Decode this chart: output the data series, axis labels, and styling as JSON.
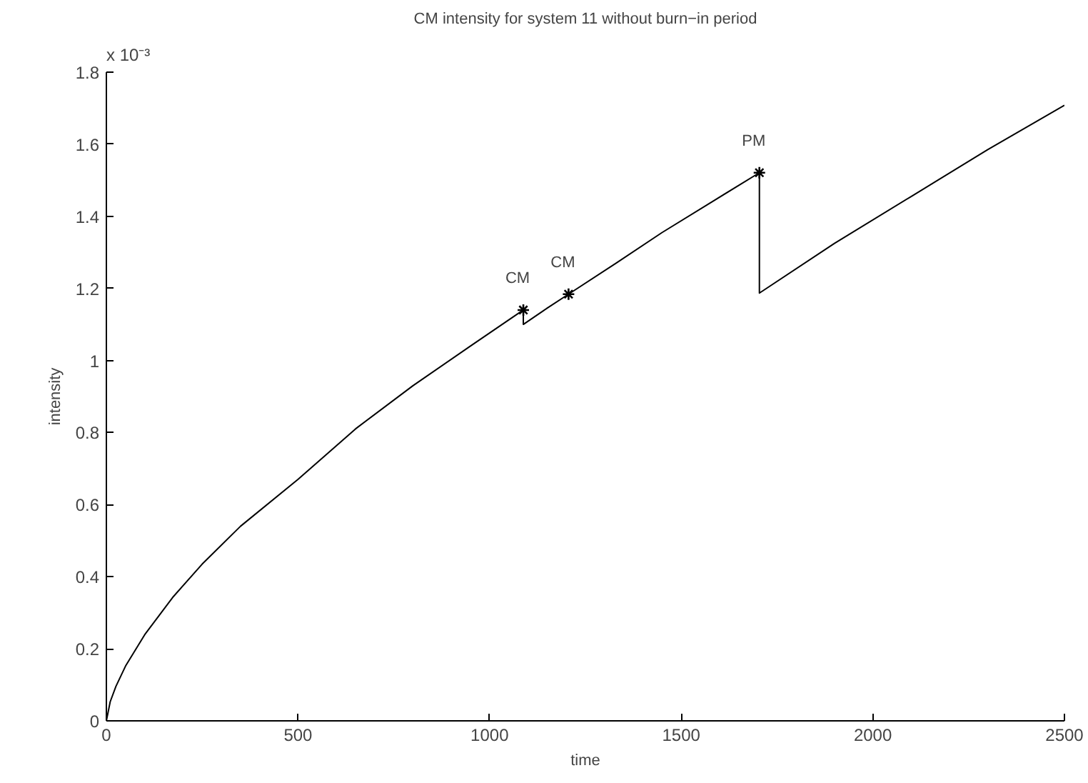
{
  "chart_data": {
    "type": "line",
    "title": "CM intensity for system 11 without burn−in period",
    "xlabel": "time",
    "ylabel": "intensity",
    "series": [
      {
        "color": "#000000",
        "x": [
          0,
          10,
          25,
          50,
          100,
          175,
          250,
          350,
          500,
          650,
          800,
          950,
          1088,
          1088,
          1150,
          1206,
          1330,
          1450,
          1580,
          1704,
          1704,
          1900,
          2100,
          2300,
          2500
        ],
        "values": [
          0,
          0.053,
          0.096,
          0.152,
          0.239,
          0.345,
          0.435,
          0.54,
          0.67,
          0.81,
          0.93,
          1.04,
          1.14,
          1.1,
          1.145,
          1.184,
          1.27,
          1.355,
          1.44,
          1.521,
          1.187,
          1.325,
          1.455,
          1.585,
          1.708
        ]
      },
      {
        "type": "scatter",
        "color": "#000000",
        "marker": "cross",
        "x": [
          1088,
          1206,
          1704
        ],
        "values": [
          1.14,
          1.184,
          1.521
        ]
      }
    ],
    "annotations": [
      {
        "text": "CM",
        "x": 1088,
        "y": 1.14
      },
      {
        "text": "CM",
        "x": 1206,
        "y": 1.184
      },
      {
        "text": "PM",
        "x": 1704,
        "y": 1.521
      },
      "x 10⁻³"
    ],
    "xlim": [
      0,
      2500
    ],
    "ylim": [
      0,
      1.8
    ],
    "xticks": [
      0,
      500,
      1000,
      1500,
      2000,
      2500
    ],
    "yticks": [
      0,
      0.2,
      0.4,
      0.6,
      0.8,
      1,
      1.2,
      1.4,
      1.6,
      1.8
    ],
    "grid": false
  }
}
